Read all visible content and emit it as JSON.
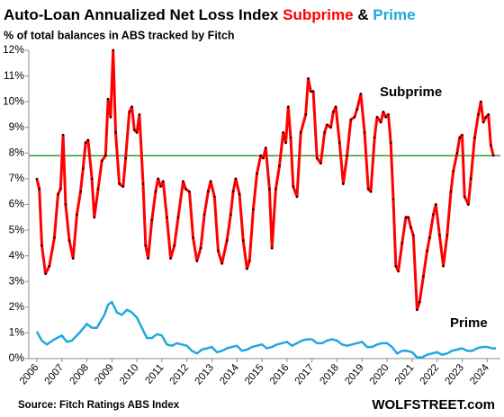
{
  "chart_data": {
    "type": "line",
    "title": [
      "Auto-Loan Annualized Net Loss Index",
      "Subprime",
      "&",
      "Prime"
    ],
    "subtitle": "% of total balances in ABS tracked by Fitch",
    "source": "Source: Fitch Ratings ABS Index",
    "watermark": "WOLFSTREET.com",
    "xlim": [
      2005.68,
      2024.53
    ],
    "xticks": [
      2006,
      2007,
      2008,
      2009,
      2010,
      2011,
      2012,
      2013,
      2014,
      2015,
      2016,
      2017,
      2018,
      2019,
      2020,
      2021,
      2022,
      2023,
      2024
    ],
    "ylim": [
      0,
      12
    ],
    "yticks": [
      {
        "value": 0,
        "label": "0%"
      },
      {
        "value": 1,
        "label": "1%"
      },
      {
        "value": 2,
        "label": "2%"
      },
      {
        "value": 3,
        "label": "3%"
      },
      {
        "value": 4,
        "label": "4%"
      },
      {
        "value": 5,
        "label": "5%"
      },
      {
        "value": 6,
        "label": "6%"
      },
      {
        "value": 7,
        "label": "7%"
      },
      {
        "value": 8,
        "label": "8%"
      },
      {
        "value": 9,
        "label": "9%"
      },
      {
        "value": 10,
        "label": "10%"
      },
      {
        "value": 11,
        "label": "11%"
      },
      {
        "value": 12,
        "label": "12%"
      }
    ],
    "grid": false,
    "reference_line": {
      "value": 7.9,
      "color": "#2ca02c"
    },
    "series": [
      {
        "name": "Subprime",
        "color": "#ff0000",
        "markers": true,
        "x": [
          2006.0,
          2006.1,
          2006.2,
          2006.35,
          2006.5,
          2006.7,
          2006.85,
          2006.95,
          2007.05,
          2007.15,
          2007.3,
          2007.45,
          2007.6,
          2007.75,
          2007.85,
          2007.95,
          2008.05,
          2008.2,
          2008.3,
          2008.45,
          2008.6,
          2008.75,
          2008.85,
          2008.95,
          2009.05,
          2009.15,
          2009.3,
          2009.45,
          2009.55,
          2009.7,
          2009.8,
          2009.9,
          2010.0,
          2010.1,
          2010.25,
          2010.35,
          2010.45,
          2010.6,
          2010.75,
          2010.85,
          2010.95,
          2011.05,
          2011.2,
          2011.35,
          2011.5,
          2011.65,
          2011.85,
          2011.95,
          2012.1,
          2012.25,
          2012.4,
          2012.55,
          2012.7,
          2012.85,
          2012.95,
          2013.1,
          2013.25,
          2013.4,
          2013.6,
          2013.75,
          2013.85,
          2013.95,
          2014.1,
          2014.25,
          2014.4,
          2014.5,
          2014.65,
          2014.8,
          2014.95,
          2015.05,
          2015.15,
          2015.3,
          2015.4,
          2015.55,
          2015.7,
          2015.85,
          2015.95,
          2016.05,
          2016.15,
          2016.25,
          2016.4,
          2016.55,
          2016.75,
          2016.85,
          2016.95,
          2017.05,
          2017.2,
          2017.35,
          2017.5,
          2017.6,
          2017.75,
          2017.85,
          2017.95,
          2018.1,
          2018.25,
          2018.4,
          2018.55,
          2018.7,
          2018.8,
          2018.95,
          2019.1,
          2019.25,
          2019.35,
          2019.5,
          2019.6,
          2019.75,
          2019.85,
          2019.95,
          2020.05,
          2020.15,
          2020.25,
          2020.35,
          2020.45,
          2020.6,
          2020.75,
          2020.85,
          2020.95,
          2021.05,
          2021.2,
          2021.3,
          2021.45,
          2021.6,
          2021.7,
          2021.85,
          2021.95,
          2022.1,
          2022.25,
          2022.4,
          2022.55,
          2022.65,
          2022.8,
          2022.9,
          2023.0,
          2023.1,
          2023.25,
          2023.35,
          2023.5,
          2023.65,
          2023.75,
          2023.85,
          2023.95,
          2024.05,
          2024.15,
          2024.25
        ],
        "values": [
          7.0,
          6.6,
          4.4,
          3.3,
          3.6,
          4.7,
          6.4,
          6.6,
          8.7,
          6.0,
          4.6,
          3.9,
          5.6,
          6.5,
          7.4,
          8.4,
          8.5,
          7.0,
          5.5,
          6.6,
          7.7,
          7.9,
          10.1,
          9.4,
          12.0,
          8.8,
          6.8,
          6.7,
          7.8,
          9.6,
          9.8,
          8.9,
          8.8,
          9.5,
          6.8,
          4.4,
          3.9,
          5.4,
          6.5,
          7.0,
          6.7,
          6.9,
          5.5,
          3.9,
          4.4,
          5.5,
          6.9,
          6.6,
          6.5,
          4.7,
          3.8,
          4.3,
          5.6,
          6.5,
          6.9,
          6.3,
          4.2,
          3.7,
          4.6,
          5.6,
          6.5,
          7.0,
          6.4,
          4.6,
          3.5,
          3.8,
          5.8,
          7.2,
          7.9,
          7.8,
          8.2,
          6.6,
          4.3,
          6.6,
          7.5,
          8.8,
          8.4,
          9.8,
          8.6,
          6.7,
          6.3,
          8.8,
          9.5,
          10.9,
          10.4,
          10.4,
          7.8,
          7.6,
          8.8,
          9.1,
          9.0,
          9.6,
          9.8,
          8.4,
          6.8,
          7.9,
          9.3,
          9.4,
          9.7,
          10.3,
          8.8,
          6.6,
          6.5,
          8.6,
          9.4,
          9.2,
          9.6,
          9.4,
          9.5,
          8.4,
          6.2,
          3.6,
          3.4,
          4.5,
          5.5,
          5.5,
          5.1,
          4.8,
          1.9,
          2.2,
          3.2,
          4.2,
          4.7,
          5.6,
          6.0,
          4.8,
          3.6,
          4.8,
          6.5,
          7.3,
          8.0,
          8.6,
          8.7,
          6.3,
          6.0,
          7.0,
          8.6,
          9.5,
          10.0,
          9.2,
          9.4,
          9.5,
          8.3,
          7.9
        ]
      },
      {
        "name": "Prime",
        "color": "#1fa8e0",
        "markers": false,
        "x": [
          2006.0,
          2006.2,
          2006.4,
          2006.7,
          2007.0,
          2007.2,
          2007.4,
          2007.7,
          2008.0,
          2008.2,
          2008.4,
          2008.7,
          2008.85,
          2009.0,
          2009.2,
          2009.4,
          2009.6,
          2009.8,
          2010.0,
          2010.2,
          2010.4,
          2010.6,
          2010.8,
          2011.0,
          2011.2,
          2011.4,
          2011.6,
          2011.8,
          2012.0,
          2012.2,
          2012.4,
          2012.6,
          2012.8,
          2013.0,
          2013.2,
          2013.4,
          2013.6,
          2013.8,
          2014.0,
          2014.2,
          2014.4,
          2014.6,
          2014.8,
          2015.0,
          2015.2,
          2015.4,
          2015.6,
          2015.8,
          2016.0,
          2016.2,
          2016.4,
          2016.6,
          2016.8,
          2017.0,
          2017.2,
          2017.4,
          2017.6,
          2017.8,
          2018.0,
          2018.2,
          2018.4,
          2018.6,
          2018.8,
          2019.0,
          2019.2,
          2019.4,
          2019.6,
          2019.8,
          2020.0,
          2020.2,
          2020.4,
          2020.6,
          2020.8,
          2021.0,
          2021.2,
          2021.4,
          2021.6,
          2021.8,
          2022.0,
          2022.2,
          2022.4,
          2022.6,
          2022.8,
          2023.0,
          2023.2,
          2023.4,
          2023.6,
          2023.8,
          2024.0,
          2024.2,
          2024.35
        ],
        "values": [
          1.05,
          0.7,
          0.55,
          0.75,
          0.9,
          0.65,
          0.7,
          1.0,
          1.35,
          1.2,
          1.2,
          1.7,
          2.1,
          2.2,
          1.8,
          1.7,
          1.9,
          1.8,
          1.6,
          1.2,
          0.8,
          0.8,
          0.95,
          0.9,
          0.55,
          0.5,
          0.6,
          0.55,
          0.5,
          0.3,
          0.2,
          0.35,
          0.4,
          0.45,
          0.25,
          0.3,
          0.4,
          0.45,
          0.5,
          0.3,
          0.35,
          0.45,
          0.5,
          0.55,
          0.4,
          0.45,
          0.55,
          0.6,
          0.65,
          0.5,
          0.6,
          0.7,
          0.75,
          0.75,
          0.6,
          0.6,
          0.7,
          0.75,
          0.7,
          0.55,
          0.5,
          0.55,
          0.6,
          0.65,
          0.45,
          0.45,
          0.55,
          0.6,
          0.6,
          0.45,
          0.2,
          0.3,
          0.3,
          0.25,
          0.05,
          0.05,
          0.15,
          0.2,
          0.25,
          0.15,
          0.2,
          0.3,
          0.35,
          0.4,
          0.3,
          0.3,
          0.4,
          0.45,
          0.45,
          0.4,
          0.4
        ]
      }
    ]
  }
}
